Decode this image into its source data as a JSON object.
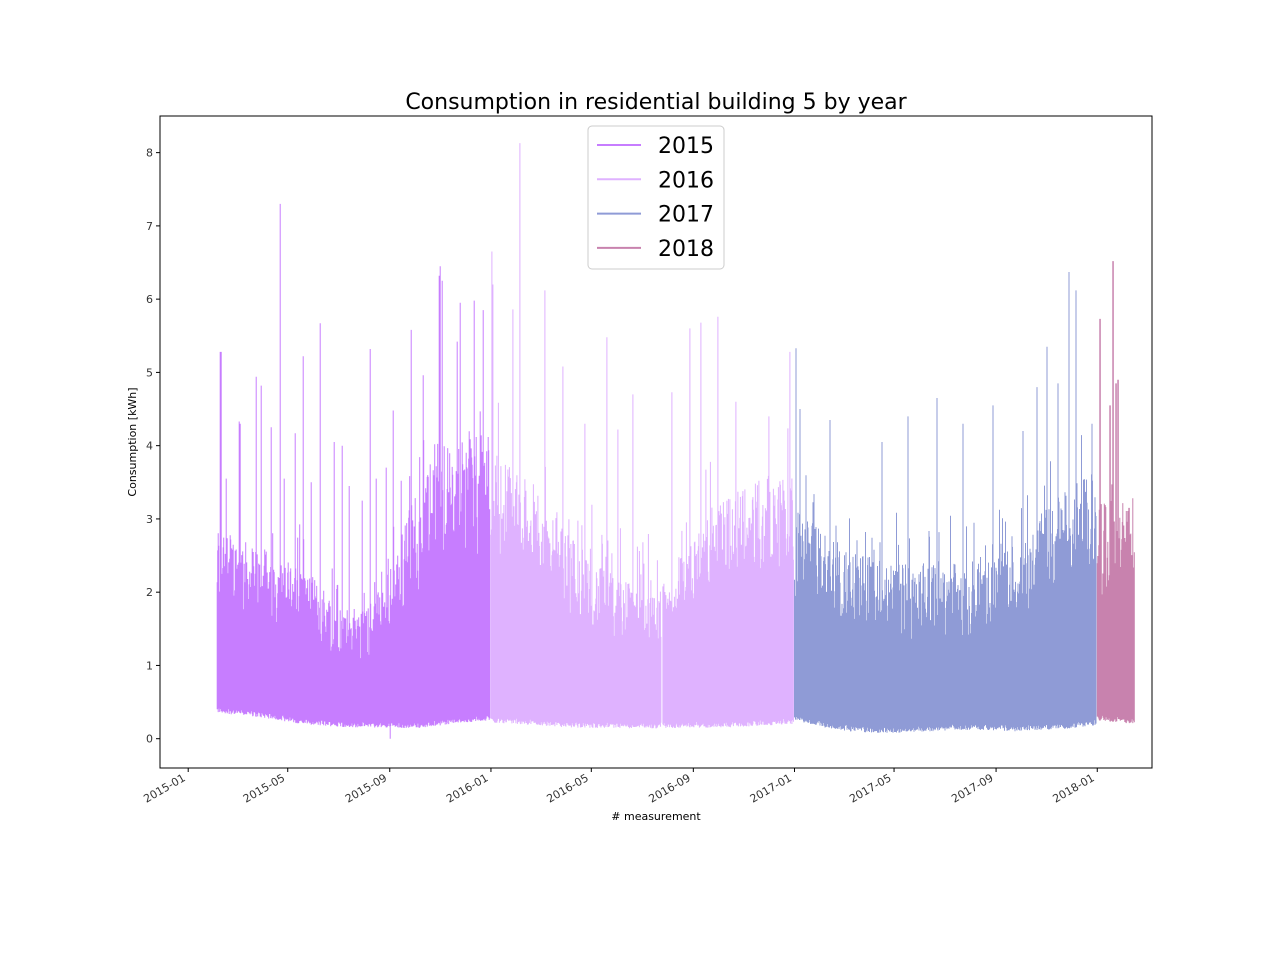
{
  "chart_data": {
    "type": "line",
    "title": "Consumption in residential building 5 by year",
    "xlabel": "# measurement",
    "ylabel": "Consumption [kWh]",
    "x_type": "date",
    "xlim": [
      "2014-11-28",
      "2018-03-08"
    ],
    "ylim": [
      -0.4,
      8.5
    ],
    "x_ticks": [
      "2015-01",
      "2015-05",
      "2015-09",
      "2016-01",
      "2016-05",
      "2016-09",
      "2017-01",
      "2017-05",
      "2017-09",
      "2018-01"
    ],
    "y_ticks": [
      0,
      1,
      2,
      3,
      4,
      5,
      6,
      7,
      8
    ],
    "grid": false,
    "legend": {
      "placement": "top-center"
    },
    "series": [
      {
        "name": "2015",
        "color": "#c77dff",
        "x_start": "2015-02-05",
        "x_end": "2015-12-31",
        "baseline": [
          0.35,
          0.32,
          0.28,
          0.22,
          0.18,
          0.16,
          0.15,
          0.15,
          0.14,
          0.18,
          0.22,
          0.25
        ],
        "body": [
          2.6,
          2.4,
          2.3,
          2.2,
          2.0,
          1.7,
          1.6,
          2.2,
          3.3,
          3.6,
          3.9,
          4.0
        ],
        "peaks": [
          [
            "2015-02-08",
            5.28
          ],
          [
            "2015-02-09",
            5.28
          ],
          [
            "2015-02-16",
            3.55
          ],
          [
            "2015-03-03",
            4.33
          ],
          [
            "2015-03-05",
            4.3
          ],
          [
            "2015-03-24",
            4.94
          ],
          [
            "2015-03-30",
            4.82
          ],
          [
            "2015-04-11",
            4.25
          ],
          [
            "2015-04-22",
            7.3
          ],
          [
            "2015-04-27",
            3.55
          ],
          [
            "2015-05-10",
            4.17
          ],
          [
            "2015-05-20",
            5.22
          ],
          [
            "2015-05-29",
            3.5
          ],
          [
            "2015-06-09",
            5.67
          ],
          [
            "2015-06-26",
            4.05
          ],
          [
            "2015-07-06",
            4.0
          ],
          [
            "2015-07-14",
            3.45
          ],
          [
            "2015-07-30",
            3.25
          ],
          [
            "2015-08-08",
            5.32
          ],
          [
            "2015-08-15",
            3.55
          ],
          [
            "2015-08-28",
            3.7
          ],
          [
            "2015-09-05",
            4.48
          ],
          [
            "2015-09-15",
            3.52
          ],
          [
            "2015-09-27",
            5.58
          ],
          [
            "2015-10-11",
            4.96
          ],
          [
            "2015-10-30",
            6.32
          ],
          [
            "2015-11-01",
            6.45
          ],
          [
            "2015-11-03",
            6.25
          ],
          [
            "2015-11-21",
            5.42
          ],
          [
            "2015-11-25",
            5.95
          ],
          [
            "2015-12-12",
            5.98
          ],
          [
            "2015-12-23",
            5.85
          ]
        ],
        "min_point": [
          "2015-09-01",
          0.0
        ]
      },
      {
        "name": "2016",
        "color": "#dfb2ff",
        "x_start": "2016-01-01",
        "x_end": "2016-12-31",
        "baseline": [
          0.22,
          0.2,
          0.17,
          0.15,
          0.14,
          0.14,
          0.14,
          0.15,
          0.15,
          0.16,
          0.18,
          0.2
        ],
        "body": [
          3.8,
          3.5,
          3.0,
          2.6,
          2.2,
          2.0,
          1.8,
          2.4,
          3.0,
          3.3,
          3.4,
          3.5
        ],
        "peaks": [
          [
            "2016-01-02",
            6.65
          ],
          [
            "2016-01-04",
            6.2
          ],
          [
            "2016-01-28",
            5.86
          ],
          [
            "2016-02-05",
            8.13
          ],
          [
            "2016-03-06",
            6.12
          ],
          [
            "2016-03-28",
            5.08
          ],
          [
            "2016-04-24",
            4.3
          ],
          [
            "2016-05-20",
            5.48
          ],
          [
            "2016-06-02",
            4.22
          ],
          [
            "2016-06-20",
            4.7
          ],
          [
            "2016-08-06",
            4.73
          ],
          [
            "2016-08-28",
            5.6
          ],
          [
            "2016-09-10",
            5.68
          ],
          [
            "2016-10-01",
            5.76
          ],
          [
            "2016-10-22",
            4.6
          ],
          [
            "2016-12-01",
            4.4
          ],
          [
            "2016-12-26",
            5.28
          ]
        ],
        "gap": [
          "2016-07-24",
          "2016-07-26"
        ]
      },
      {
        "name": "2017",
        "color": "#8f9bd6",
        "x_start": "2017-01-01",
        "x_end": "2017-12-31",
        "baseline": [
          0.25,
          0.16,
          0.1,
          0.08,
          0.08,
          0.1,
          0.12,
          0.12,
          0.1,
          0.12,
          0.14,
          0.18
        ],
        "body": [
          2.9,
          2.7,
          2.5,
          2.4,
          2.3,
          2.3,
          2.2,
          2.3,
          2.5,
          3.0,
          3.3,
          3.5
        ],
        "peaks": [
          [
            "2017-01-03",
            5.33
          ],
          [
            "2017-01-08",
            4.5
          ],
          [
            "2017-02-13",
            4.35
          ],
          [
            "2017-04-16",
            4.05
          ],
          [
            "2017-05-18",
            4.4
          ],
          [
            "2017-06-22",
            4.65
          ],
          [
            "2017-07-23",
            4.3
          ],
          [
            "2017-08-28",
            4.55
          ],
          [
            "2017-10-04",
            4.2
          ],
          [
            "2017-10-20",
            4.8
          ],
          [
            "2017-11-01",
            5.35
          ],
          [
            "2017-11-15",
            4.85
          ],
          [
            "2017-11-28",
            6.37
          ],
          [
            "2017-12-06",
            6.12
          ],
          [
            "2017-12-26",
            4.3
          ]
        ]
      },
      {
        "name": "2018",
        "color": "#c882ae",
        "x_start": "2018-01-01",
        "x_end": "2018-02-15",
        "baseline": [
          0.25,
          0.2
        ],
        "body": [
          3.0,
          3.1
        ],
        "peaks": [
          [
            "2018-01-04",
            5.73
          ],
          [
            "2018-01-16",
            4.55
          ],
          [
            "2018-01-20",
            6.52
          ],
          [
            "2018-01-23",
            4.85
          ],
          [
            "2018-01-26",
            4.9
          ],
          [
            "2018-02-08",
            3.15
          ]
        ]
      }
    ]
  }
}
